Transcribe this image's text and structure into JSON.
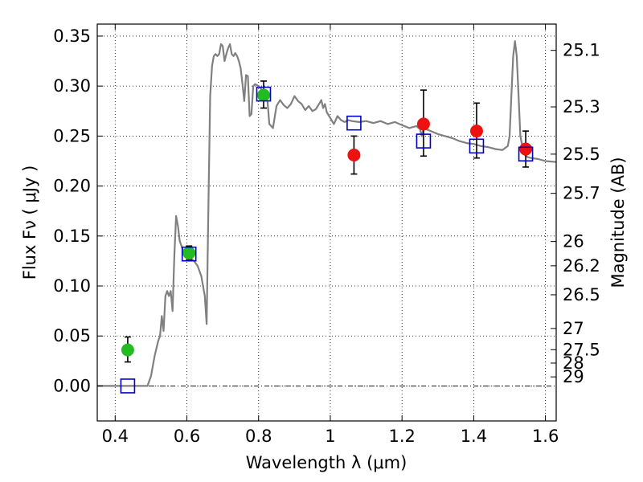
{
  "chart_data": {
    "type": "scatter",
    "title": "",
    "xlabel": "Wavelength  λ (μm)",
    "ylabel": "Flux  Fν  ( μJy )",
    "y2label": "Magnitude (AB)",
    "xlim": [
      0.35,
      1.63
    ],
    "ylim": [
      -0.035,
      0.362
    ],
    "xticks": [
      {
        "v": 0.4,
        "label": "0.4"
      },
      {
        "v": 0.6,
        "label": "0.6"
      },
      {
        "v": 0.8,
        "label": "0.8"
      },
      {
        "v": 1.0,
        "label": "1"
      },
      {
        "v": 1.2,
        "label": "1.2"
      },
      {
        "v": 1.4,
        "label": "1.4"
      },
      {
        "v": 1.6,
        "label": "1.6"
      }
    ],
    "yticks": [
      {
        "v": 0.0,
        "label": "0.00"
      },
      {
        "v": 0.05,
        "label": "0.05"
      },
      {
        "v": 0.1,
        "label": "0.10"
      },
      {
        "v": 0.15,
        "label": "0.15"
      },
      {
        "v": 0.2,
        "label": "0.20"
      },
      {
        "v": 0.25,
        "label": "0.25"
      },
      {
        "v": 0.3,
        "label": "0.30"
      },
      {
        "v": 0.35,
        "label": "0.35"
      }
    ],
    "y2ticks": [
      {
        "flux": 0.3357,
        "label": "25.1"
      },
      {
        "flux": 0.2792,
        "label": "25.3"
      },
      {
        "flux": 0.2319,
        "label": "25.5"
      },
      {
        "flux": 0.1927,
        "label": "25.7"
      },
      {
        "flux": 0.1445,
        "label": "26"
      },
      {
        "flux": 0.1202,
        "label": "26.2"
      },
      {
        "flux": 0.0912,
        "label": "26.5"
      },
      {
        "flux": 0.0575,
        "label": "27"
      },
      {
        "flux": 0.0363,
        "label": "27.5"
      },
      {
        "flux": 0.0229,
        "label": "28"
      },
      {
        "flux": 0.0091,
        "label": "29"
      }
    ],
    "grid": true,
    "colors": {
      "model": "#808080",
      "observed_green": "#22bb22",
      "observed_red": "#ee1111",
      "model_band": "#0000cc",
      "errorbar": "#000000"
    },
    "series": [
      {
        "kind": "line",
        "points": [
          [
            0.35,
            0.0
          ],
          [
            0.49,
            0.0
          ],
          [
            0.5,
            0.01
          ],
          [
            0.51,
            0.03
          ],
          [
            0.52,
            0.045
          ],
          [
            0.525,
            0.05
          ],
          [
            0.53,
            0.07
          ],
          [
            0.535,
            0.055
          ],
          [
            0.54,
            0.09
          ],
          [
            0.545,
            0.095
          ],
          [
            0.55,
            0.09
          ],
          [
            0.555,
            0.095
          ],
          [
            0.56,
            0.075
          ],
          [
            0.565,
            0.13
          ],
          [
            0.57,
            0.17
          ],
          [
            0.575,
            0.16
          ],
          [
            0.58,
            0.145
          ],
          [
            0.585,
            0.14
          ],
          [
            0.59,
            0.135
          ],
          [
            0.6,
            0.13
          ],
          [
            0.61,
            0.128
          ],
          [
            0.62,
            0.125
          ],
          [
            0.63,
            0.12
          ],
          [
            0.64,
            0.11
          ],
          [
            0.65,
            0.09
          ],
          [
            0.655,
            0.062
          ],
          [
            0.66,
            0.18
          ],
          [
            0.665,
            0.29
          ],
          [
            0.67,
            0.32
          ],
          [
            0.675,
            0.33
          ],
          [
            0.68,
            0.332
          ],
          [
            0.685,
            0.33
          ],
          [
            0.69,
            0.332
          ],
          [
            0.695,
            0.342
          ],
          [
            0.7,
            0.34
          ],
          [
            0.705,
            0.325
          ],
          [
            0.71,
            0.332
          ],
          [
            0.715,
            0.338
          ],
          [
            0.72,
            0.342
          ],
          [
            0.725,
            0.332
          ],
          [
            0.73,
            0.33
          ],
          [
            0.735,
            0.333
          ],
          [
            0.74,
            0.33
          ],
          [
            0.745,
            0.325
          ],
          [
            0.75,
            0.318
          ],
          [
            0.755,
            0.302
          ],
          [
            0.76,
            0.285
          ],
          [
            0.765,
            0.311
          ],
          [
            0.77,
            0.31
          ],
          [
            0.775,
            0.27
          ],
          [
            0.78,
            0.272
          ],
          [
            0.785,
            0.3
          ],
          [
            0.79,
            0.302
          ],
          [
            0.8,
            0.3
          ],
          [
            0.81,
            0.296
          ],
          [
            0.82,
            0.29
          ],
          [
            0.825,
            0.284
          ],
          [
            0.83,
            0.262
          ],
          [
            0.84,
            0.258
          ],
          [
            0.85,
            0.28
          ],
          [
            0.86,
            0.286
          ],
          [
            0.87,
            0.281
          ],
          [
            0.88,
            0.278
          ],
          [
            0.89,
            0.282
          ],
          [
            0.9,
            0.29
          ],
          [
            0.91,
            0.285
          ],
          [
            0.92,
            0.282
          ],
          [
            0.93,
            0.276
          ],
          [
            0.94,
            0.28
          ],
          [
            0.95,
            0.275
          ],
          [
            0.96,
            0.277
          ],
          [
            0.97,
            0.283
          ],
          [
            0.975,
            0.286
          ],
          [
            0.98,
            0.278
          ],
          [
            0.985,
            0.282
          ],
          [
            0.99,
            0.274
          ],
          [
            1.0,
            0.268
          ],
          [
            1.01,
            0.262
          ],
          [
            1.02,
            0.27
          ],
          [
            1.03,
            0.266
          ],
          [
            1.04,
            0.264
          ],
          [
            1.05,
            0.266
          ],
          [
            1.06,
            0.265
          ],
          [
            1.08,
            0.264
          ],
          [
            1.1,
            0.265
          ],
          [
            1.12,
            0.263
          ],
          [
            1.14,
            0.265
          ],
          [
            1.16,
            0.262
          ],
          [
            1.18,
            0.264
          ],
          [
            1.2,
            0.261
          ],
          [
            1.22,
            0.258
          ],
          [
            1.24,
            0.26
          ],
          [
            1.25,
            0.257
          ],
          [
            1.255,
            0.25
          ],
          [
            1.26,
            0.258
          ],
          [
            1.28,
            0.255
          ],
          [
            1.3,
            0.252
          ],
          [
            1.32,
            0.25
          ],
          [
            1.34,
            0.248
          ],
          [
            1.36,
            0.245
          ],
          [
            1.38,
            0.243
          ],
          [
            1.4,
            0.242
          ],
          [
            1.42,
            0.24
          ],
          [
            1.44,
            0.239
          ],
          [
            1.46,
            0.237
          ],
          [
            1.48,
            0.236
          ],
          [
            1.495,
            0.24
          ],
          [
            1.5,
            0.25
          ],
          [
            1.505,
            0.29
          ],
          [
            1.51,
            0.33
          ],
          [
            1.515,
            0.345
          ],
          [
            1.52,
            0.33
          ],
          [
            1.525,
            0.29
          ],
          [
            1.53,
            0.25
          ],
          [
            1.54,
            0.232
          ],
          [
            1.55,
            0.229
          ],
          [
            1.56,
            0.228
          ],
          [
            1.58,
            0.227
          ],
          [
            1.6,
            0.225
          ],
          [
            1.63,
            0.224
          ]
        ]
      },
      {
        "kind": "points",
        "marker": "circle",
        "color": "#22bb22",
        "x": [
          0.435,
          0.606,
          0.814
        ],
        "y": [
          0.036,
          0.133,
          0.291
        ],
        "yerr_low": [
          0.012,
          0.007,
          0.013
        ],
        "yerr_high": [
          0.013,
          0.007,
          0.014
        ]
      },
      {
        "kind": "points",
        "marker": "circle",
        "color": "#ee1111",
        "x": [
          1.066,
          1.26,
          1.408,
          1.545
        ],
        "y": [
          0.231,
          0.262,
          0.255,
          0.237
        ],
        "yerr_low": [
          0.019,
          0.032,
          0.027,
          0.018
        ],
        "yerr_high": [
          0.019,
          0.034,
          0.028,
          0.018
        ]
      },
      {
        "kind": "points",
        "marker": "open-square",
        "color": "#0000cc",
        "x": [
          0.435,
          0.606,
          0.814,
          1.066,
          1.26,
          1.408,
          1.545
        ],
        "y": [
          0.0,
          0.132,
          0.292,
          0.263,
          0.245,
          0.24,
          0.232
        ]
      }
    ]
  }
}
